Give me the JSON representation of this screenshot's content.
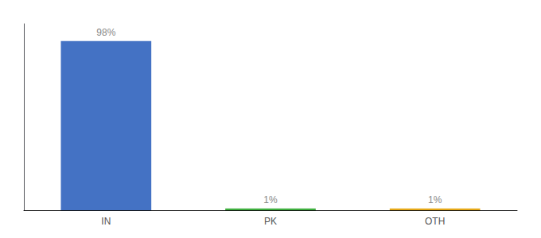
{
  "chart_data": {
    "type": "bar",
    "categories": [
      "IN",
      "PK",
      "OTH"
    ],
    "values": [
      98,
      1,
      1
    ],
    "value_labels": [
      "98%",
      "1%",
      "1%"
    ],
    "colors": [
      "#4472c4",
      "#3dae3d",
      "#e6a817"
    ],
    "ylim": [
      0,
      108
    ],
    "grid": false,
    "data_labels": true,
    "tick_labels": "x"
  }
}
